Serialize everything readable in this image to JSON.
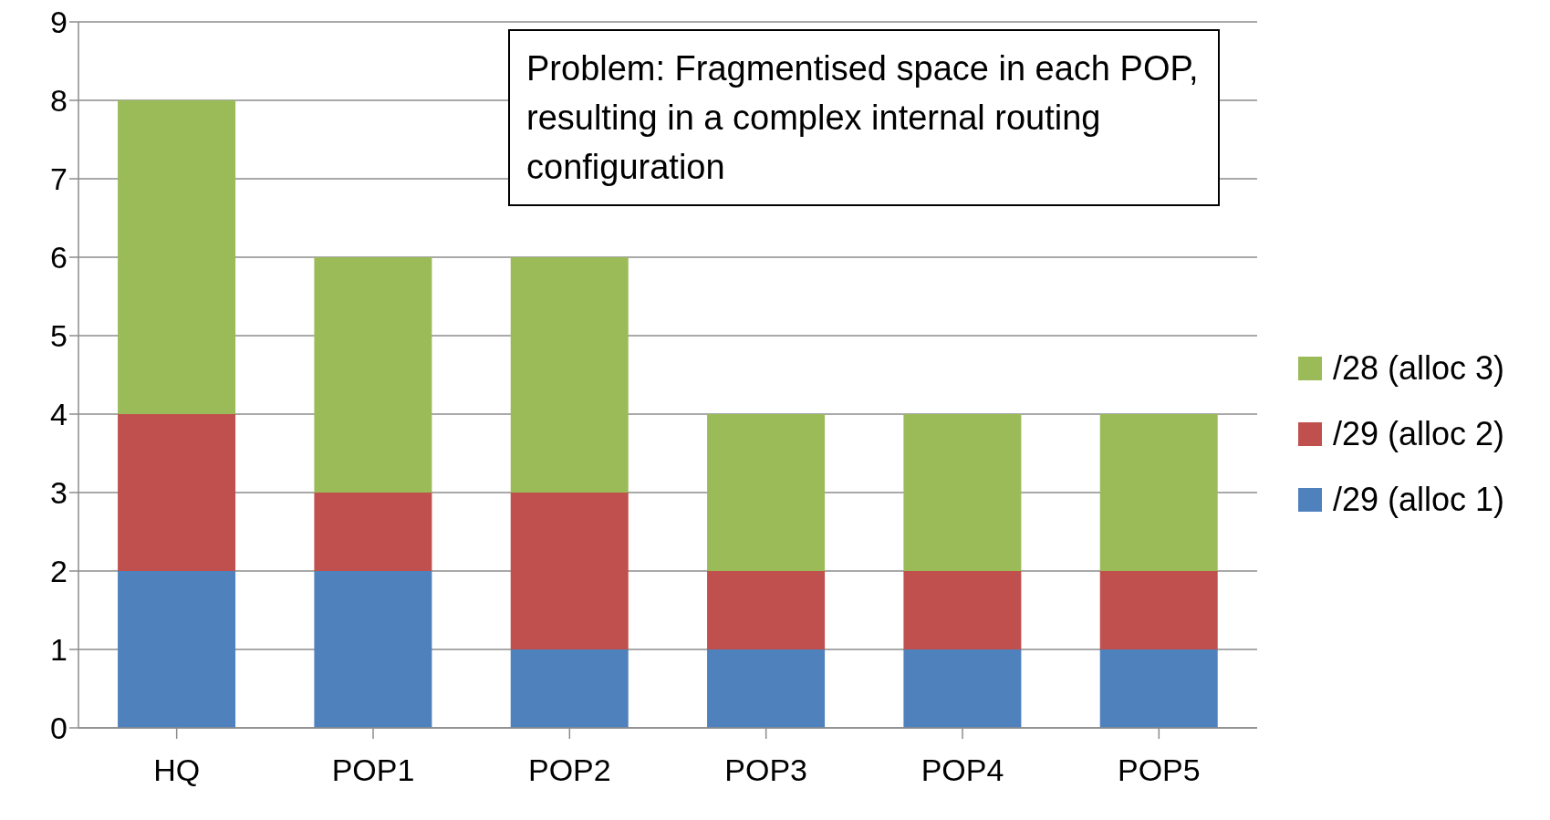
{
  "chart_data": {
    "type": "bar",
    "stacked": true,
    "categories": [
      "HQ",
      "POP1",
      "POP2",
      "POP3",
      "POP4",
      "POP5"
    ],
    "series": [
      {
        "name": "/29 (alloc 1)",
        "color": "#4f81bd",
        "values": [
          2,
          2,
          1,
          1,
          1,
          1
        ]
      },
      {
        "name": "/29 (alloc 2)",
        "color": "#c0504d",
        "values": [
          2,
          1,
          2,
          1,
          1,
          1
        ]
      },
      {
        "name": "/28 (alloc 3)",
        "color": "#9bbb59",
        "values": [
          4,
          3,
          3,
          2,
          2,
          2
        ]
      }
    ],
    "ylim": [
      0,
      9
    ],
    "yticks": [
      0,
      1,
      2,
      3,
      4,
      5,
      6,
      7,
      8,
      9
    ],
    "grid": "y",
    "legend": "right",
    "annotations": [
      "Problem: Fragmentised space in each POP, resulting in a complex internal routing configuration"
    ]
  }
}
